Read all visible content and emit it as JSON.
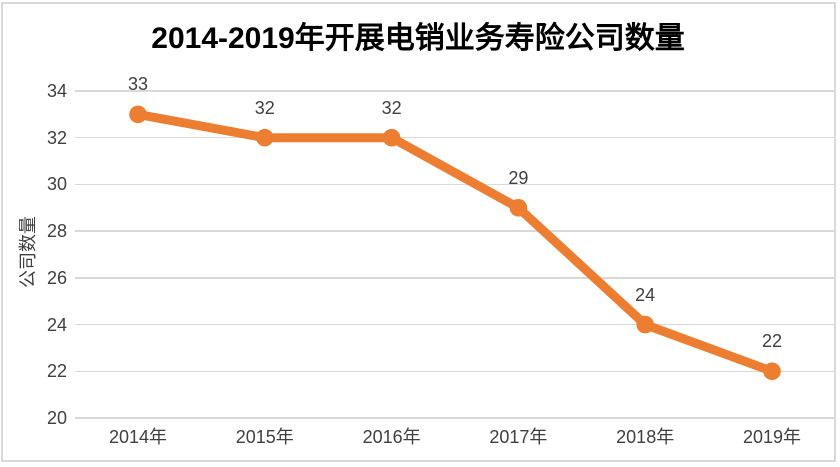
{
  "chart": {
    "title": "2014-2019年开展电销业务寿险公司数量",
    "y_axis_title": "公司数量"
  },
  "chart_data": {
    "type": "line",
    "title": "2014-2019年开展电销业务寿险公司数量",
    "categories": [
      "2014年",
      "2015年",
      "2016年",
      "2017年",
      "2018年",
      "2019年"
    ],
    "series": [
      {
        "name": "公司数量",
        "values": [
          33,
          32,
          32,
          29,
          24,
          22
        ]
      }
    ],
    "data_labels": [
      33,
      32,
      32,
      29,
      24,
      22
    ],
    "xlabel": "",
    "ylabel": "公司数量",
    "ylim": [
      20,
      34
    ],
    "ytick_step": 2,
    "yticks": [
      20,
      22,
      24,
      26,
      28,
      30,
      32,
      34
    ],
    "grid": true,
    "legend": "none",
    "marker": "circle",
    "line_color": "#ED7D31",
    "grid_color": "#D9D9D9",
    "border_color": "#D9D9D9",
    "label_color": "#404040",
    "title_color": "#000000",
    "background_color": "#FFFFFF"
  }
}
